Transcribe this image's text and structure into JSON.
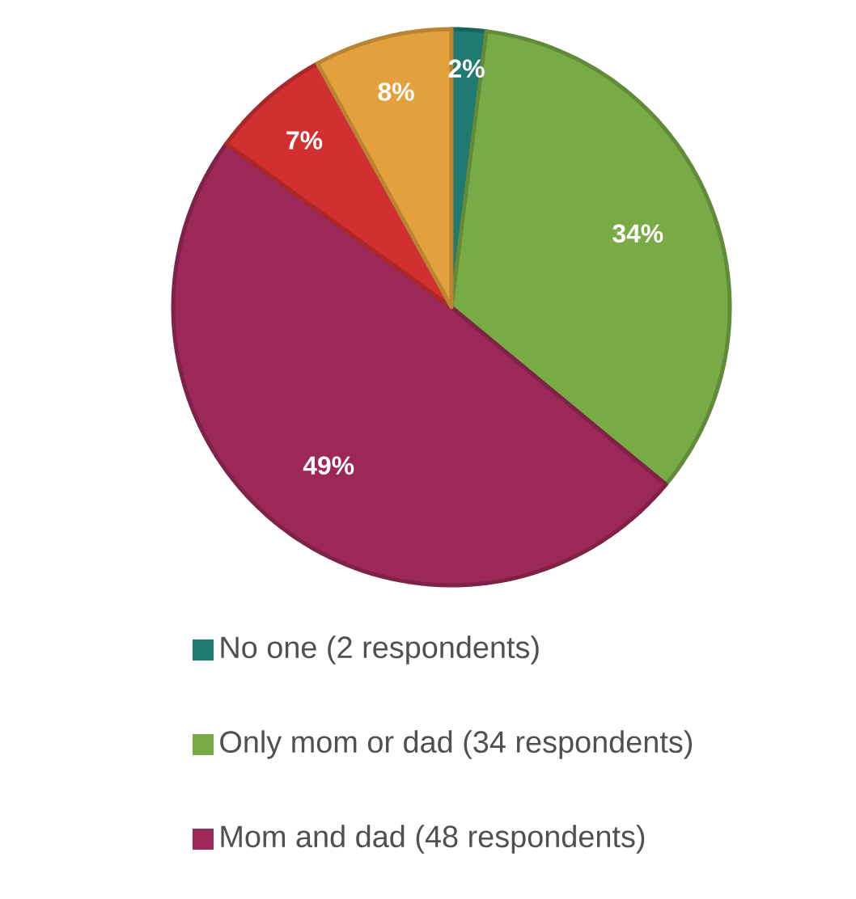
{
  "chart_data": {
    "type": "pie",
    "categories": [
      "No one (2 respondents)",
      "Only mom or dad (34 respondents)",
      "Mom and dad (48 respondents)",
      null,
      null
    ],
    "values": [
      2,
      34,
      49,
      7,
      8
    ],
    "colors": [
      "#1f7b71",
      "#78aa46",
      "#9c2858",
      "#d22f30",
      "#e3a13e"
    ],
    "value_labels": [
      "2%",
      "34%",
      "49%",
      "7%",
      "8%"
    ],
    "legend": "bottom"
  }
}
